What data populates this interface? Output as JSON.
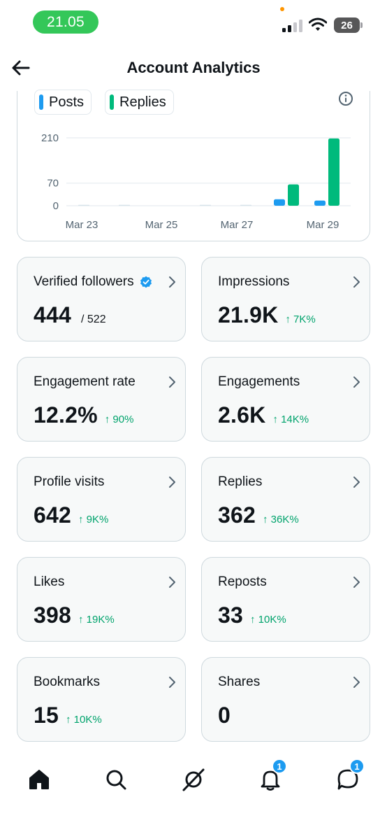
{
  "status_bar": {
    "time": "21.05",
    "battery": "26"
  },
  "header": {
    "title": "Account Analytics"
  },
  "chart_data": {
    "type": "bar",
    "categories": [
      "Mar 23",
      "Mar 24",
      "Mar 25",
      "Mar 26",
      "Mar 27",
      "Mar 28",
      "Mar 29"
    ],
    "x_tick_labels": [
      "Mar 23",
      "Mar 25",
      "Mar 27",
      "Mar 29"
    ],
    "y_ticks": [
      "210",
      "70",
      "0"
    ],
    "ylim": [
      0,
      210
    ],
    "grid": true,
    "legend_position": "top-left",
    "series": [
      {
        "name": "Posts",
        "color": "#1d9bf0",
        "values": [
          0,
          0,
          0,
          0,
          0,
          20,
          16
        ]
      },
      {
        "name": "Replies",
        "color": "#00ba7c",
        "values": [
          0,
          0,
          0,
          0,
          0,
          66,
          208
        ]
      }
    ]
  },
  "cards": [
    {
      "title": "Verified followers",
      "value": "444",
      "extra": "/ 522",
      "verified": true
    },
    {
      "title": "Impressions",
      "value": "21.9K",
      "change": "↑ 7K%"
    },
    {
      "title": "Engagement rate",
      "value": "12.2%",
      "change": "↑ 90%"
    },
    {
      "title": "Engagements",
      "value": "2.6K",
      "change": "↑ 14K%"
    },
    {
      "title": "Profile visits",
      "value": "642",
      "change": "↑ 9K%"
    },
    {
      "title": "Replies",
      "value": "362",
      "change": "↑ 36K%"
    },
    {
      "title": "Likes",
      "value": "398",
      "change": "↑ 19K%"
    },
    {
      "title": "Reposts",
      "value": "33",
      "change": "↑ 10K%"
    },
    {
      "title": "Bookmarks",
      "value": "15",
      "change": "↑ 10K%"
    },
    {
      "title": "Shares",
      "value": "0",
      "change": ""
    }
  ],
  "bottom_nav": [
    {
      "icon": "home-icon",
      "badge": ""
    },
    {
      "icon": "search-icon",
      "badge": ""
    },
    {
      "icon": "grok-icon",
      "badge": ""
    },
    {
      "icon": "bell-icon",
      "badge": "1"
    },
    {
      "icon": "messages-icon",
      "badge": "1"
    }
  ],
  "colors": {
    "accent": "#1d9bf0",
    "positive": "#00ba7c",
    "border": "#cfd9de"
  }
}
